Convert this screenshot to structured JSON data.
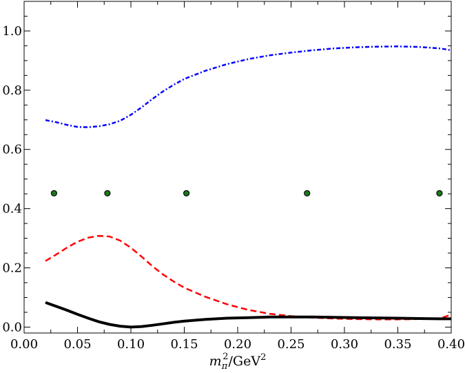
{
  "chart_data": {
    "type": "line",
    "title": "",
    "xlabel": "m_π^2/GeV^2",
    "ylabel": "",
    "xlim": [
      0.0,
      0.4
    ],
    "ylim": [
      -0.02,
      1.1
    ],
    "x_ticks": [
      "0.00",
      "0.05",
      "0.10",
      "0.15",
      "0.20",
      "0.25",
      "0.30",
      "0.35",
      "0.40"
    ],
    "y_ticks": [
      "0.0",
      "0.2",
      "0.4",
      "0.6",
      "0.8",
      "1.0"
    ],
    "grid": false,
    "series": [
      {
        "style": "dash-dot",
        "color": "#0000ff",
        "x": [
          0.02,
          0.03,
          0.04,
          0.05,
          0.06,
          0.07,
          0.08,
          0.09,
          0.1,
          0.11,
          0.12,
          0.13,
          0.14,
          0.15,
          0.17,
          0.19,
          0.21,
          0.23,
          0.25,
          0.27,
          0.29,
          0.31,
          0.33,
          0.35,
          0.37,
          0.39,
          0.4
        ],
        "y": [
          0.699,
          0.692,
          0.683,
          0.676,
          0.675,
          0.678,
          0.685,
          0.697,
          0.717,
          0.742,
          0.77,
          0.796,
          0.818,
          0.838,
          0.866,
          0.888,
          0.905,
          0.918,
          0.927,
          0.935,
          0.941,
          0.945,
          0.947,
          0.948,
          0.946,
          0.941,
          0.935
        ]
      },
      {
        "style": "dashed",
        "color": "#ff0000",
        "x": [
          0.02,
          0.03,
          0.04,
          0.05,
          0.06,
          0.07,
          0.08,
          0.09,
          0.1,
          0.11,
          0.12,
          0.13,
          0.14,
          0.15,
          0.17,
          0.19,
          0.21,
          0.23,
          0.25,
          0.27,
          0.29,
          0.31,
          0.33,
          0.35,
          0.37,
          0.39,
          0.4
        ],
        "y": [
          0.223,
          0.245,
          0.268,
          0.288,
          0.302,
          0.308,
          0.306,
          0.292,
          0.268,
          0.238,
          0.206,
          0.178,
          0.154,
          0.133,
          0.102,
          0.077,
          0.058,
          0.045,
          0.037,
          0.032,
          0.029,
          0.027,
          0.026,
          0.026,
          0.027,
          0.03,
          0.042
        ]
      },
      {
        "style": "solid",
        "color": "#000000",
        "x": [
          0.02,
          0.03,
          0.04,
          0.05,
          0.06,
          0.07,
          0.08,
          0.09,
          0.1,
          0.11,
          0.12,
          0.13,
          0.14,
          0.15,
          0.17,
          0.19,
          0.21,
          0.23,
          0.25,
          0.27,
          0.29,
          0.31,
          0.33,
          0.35,
          0.37,
          0.39,
          0.4
        ],
        "y": [
          0.083,
          0.07,
          0.057,
          0.043,
          0.03,
          0.018,
          0.009,
          0.003,
          0.0,
          0.002,
          0.006,
          0.011,
          0.016,
          0.02,
          0.026,
          0.03,
          0.032,
          0.034,
          0.034,
          0.034,
          0.033,
          0.032,
          0.031,
          0.03,
          0.029,
          0.028,
          0.028
        ]
      },
      {
        "style": "markers",
        "color": "#1a7a1a",
        "x": [
          0.028,
          0.078,
          0.152,
          0.265,
          0.389
        ],
        "y": [
          0.452,
          0.452,
          0.452,
          0.452,
          0.452
        ]
      }
    ]
  }
}
